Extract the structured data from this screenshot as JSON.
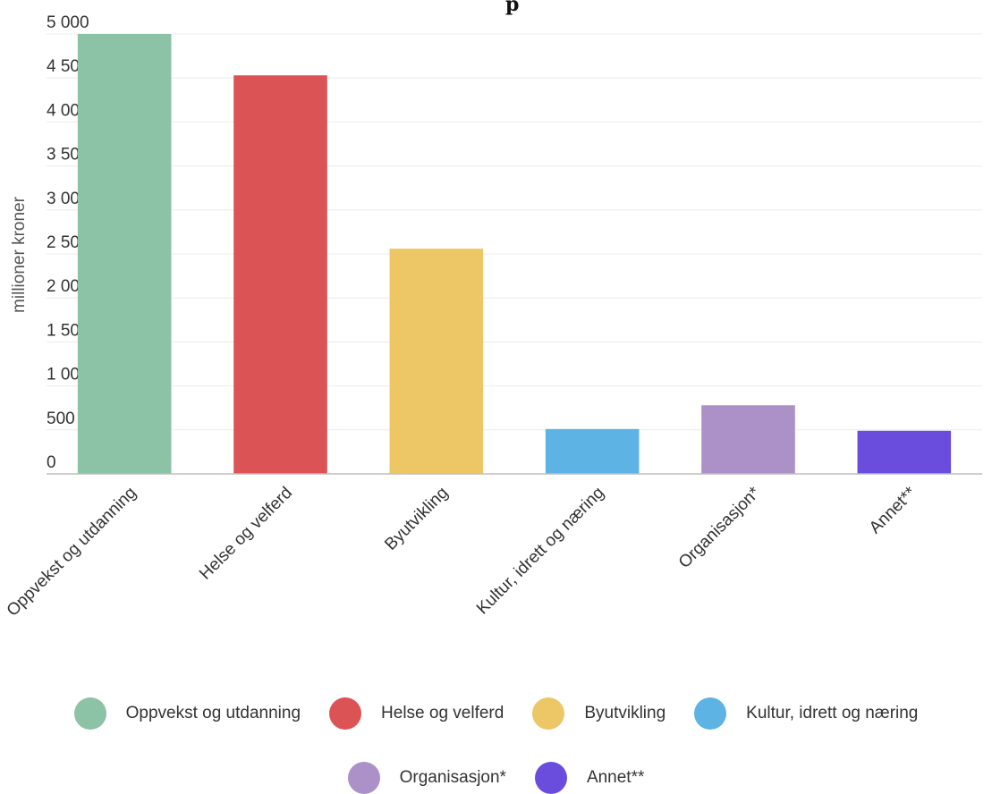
{
  "chart_data": {
    "type": "bar",
    "title": "",
    "title_fragment": "p",
    "ylabel": "millioner kroner",
    "xlabel": "",
    "ylim": [
      0,
      5000
    ],
    "yticks": [
      {
        "value": 0,
        "label": "0"
      },
      {
        "value": 500,
        "label": "500"
      },
      {
        "value": 1000,
        "label": "1 000"
      },
      {
        "value": 1500,
        "label": "1 500"
      },
      {
        "value": 2000,
        "label": "2 000"
      },
      {
        "value": 2500,
        "label": "2 500"
      },
      {
        "value": 3000,
        "label": "3 000"
      },
      {
        "value": 3500,
        "label": "3 500"
      },
      {
        "value": 4000,
        "label": "4 000"
      },
      {
        "value": 4500,
        "label": "4 500"
      },
      {
        "value": 5000,
        "label": "5 000"
      }
    ],
    "categories": [
      "Oppvekst og utdanning",
      "Helse og velferd",
      "Byutvikling",
      "Kultur, idrett og næring",
      "Organisasjon*",
      "Annet**"
    ],
    "values": [
      5000,
      4530,
      2560,
      510,
      780,
      490
    ],
    "colors": [
      "#8cc2a5",
      "#dc5356",
      "#edc766",
      "#5db3e4",
      "#ab91c8",
      "#6b4ddd"
    ],
    "grid": true,
    "legend_position": "bottom"
  },
  "legend": {
    "row1": [
      {
        "label": "Oppvekst og utdanning",
        "color": "#8cc2a5"
      },
      {
        "label": "Helse og velferd",
        "color": "#dc5356"
      },
      {
        "label": "Byutvikling",
        "color": "#edc766"
      },
      {
        "label": "Kultur, idrett og næring",
        "color": "#5db3e4"
      }
    ],
    "row2": [
      {
        "label": "Organisasjon*",
        "color": "#ab91c8"
      },
      {
        "label": "Annet**",
        "color": "#6b4ddd"
      }
    ]
  }
}
